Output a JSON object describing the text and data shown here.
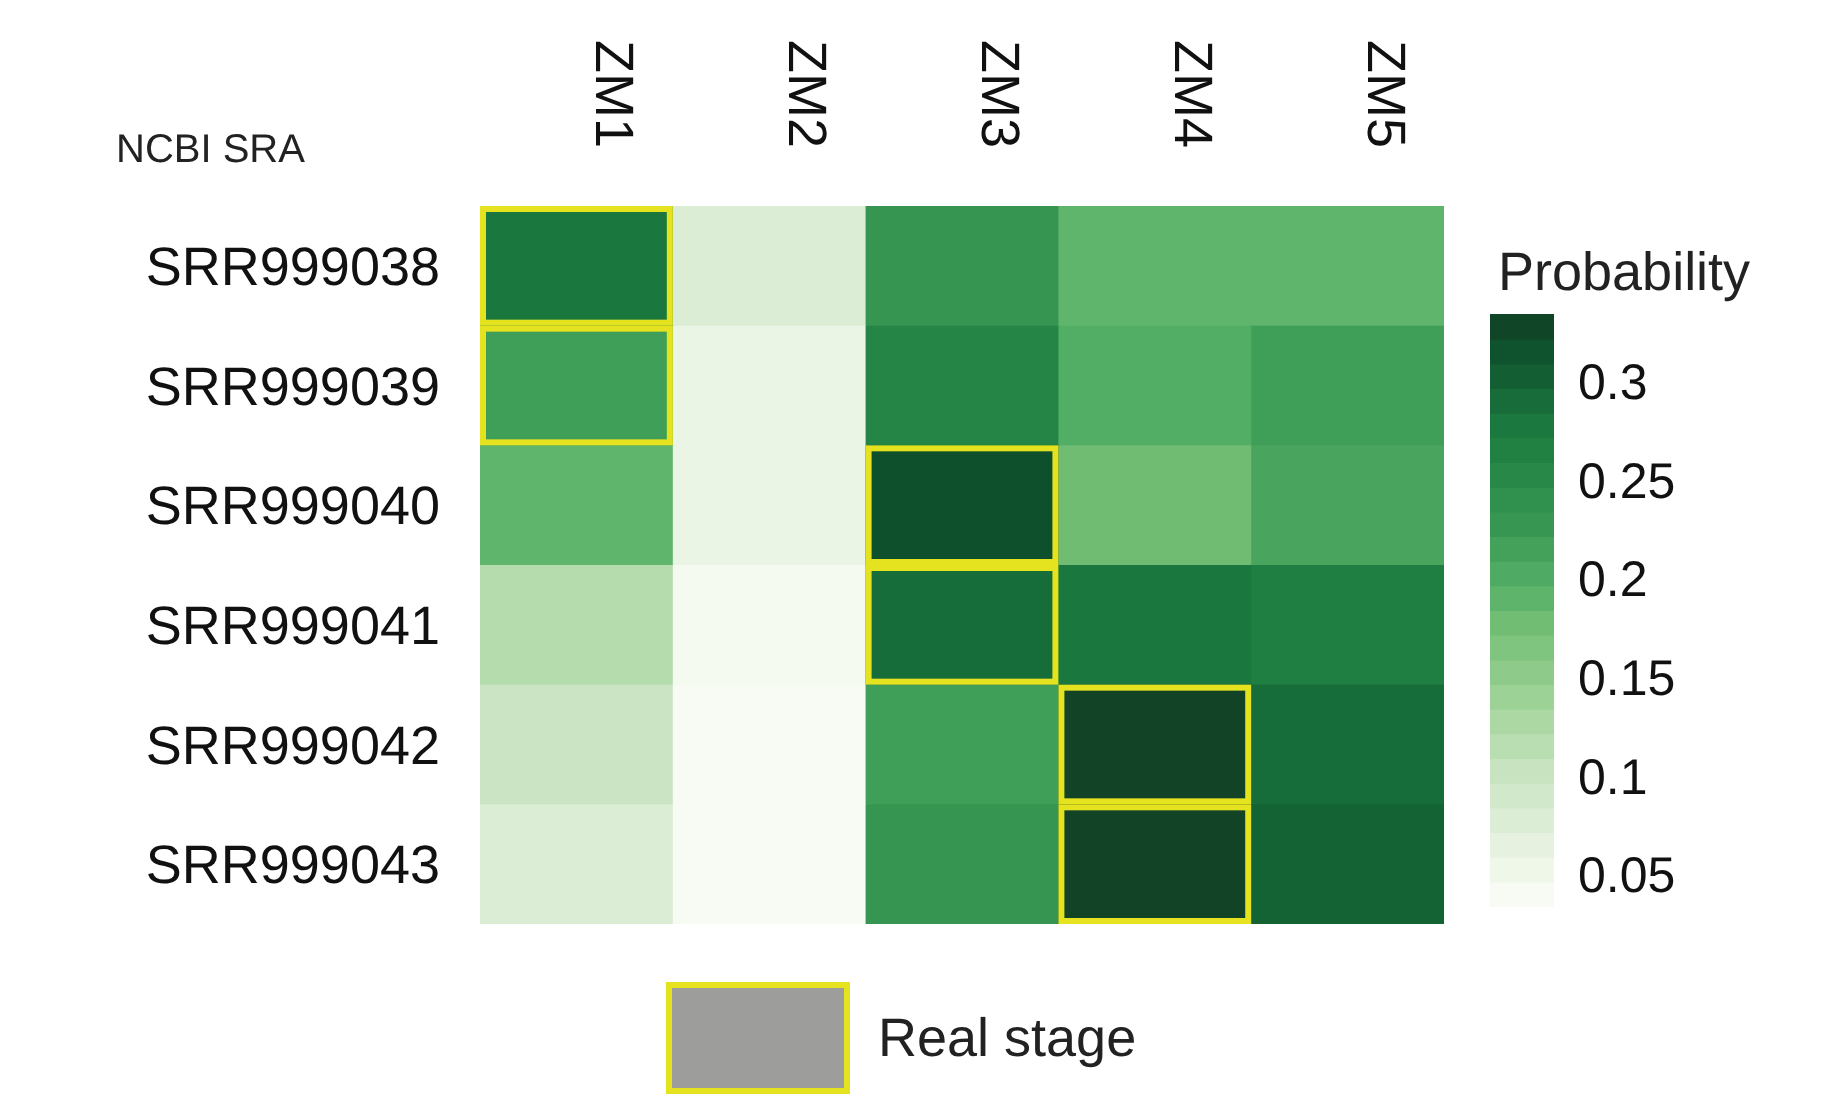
{
  "chart_data": {
    "type": "heatmap",
    "ylabel": "NCBI SRA",
    "clabel": "Probability",
    "categories": [
      "ZM1",
      "ZM2",
      "ZM3",
      "ZM4",
      "ZM5"
    ],
    "y_categories": [
      "SRR999038",
      "SRR999039",
      "SRR999040",
      "SRR999041",
      "SRR999042",
      "SRR999043"
    ],
    "cells": [
      [
        0.28,
        0.08,
        0.23,
        0.19,
        0.19
      ],
      [
        0.22,
        0.06,
        0.26,
        0.2,
        0.22
      ],
      [
        0.19,
        0.06,
        0.32,
        0.18,
        0.21
      ],
      [
        0.12,
        0.045,
        0.29,
        0.28,
        0.27
      ],
      [
        0.1,
        0.04,
        0.22,
        0.33,
        0.29
      ],
      [
        0.08,
        0.04,
        0.23,
        0.33,
        0.3
      ]
    ],
    "clim": [
      0.035,
      0.335
    ],
    "cticks": [
      0.05,
      {
        "value": 0.1,
        "label": "0.1"
      },
      0.15,
      {
        "value": 0.2,
        "label": "0.2"
      },
      0.25,
      {
        "value": 0.3,
        "label": "0.3"
      }
    ],
    "annotations": [
      "Real stage"
    ]
  }
}
